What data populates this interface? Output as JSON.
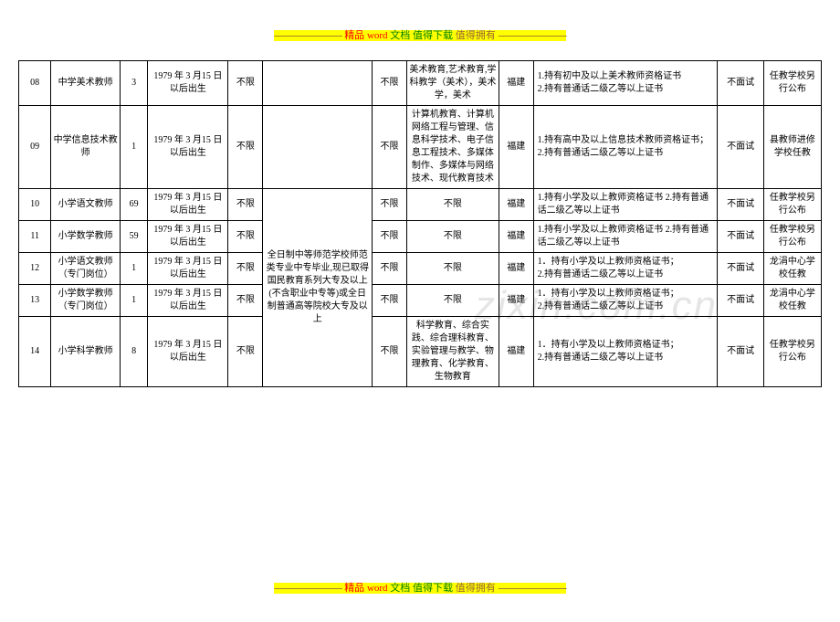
{
  "header": {
    "dashes_left": "----------------------------",
    "dashes_right": "----------------------------",
    "text_red": "精品",
    "text_word": "word",
    "text_green": "文档 值得下载",
    "text_brown": " 值得拥有"
  },
  "footer": {
    "dashes_left": "----------------------------",
    "dashes_right": "----------------------------",
    "text_red": "精品",
    "text_word": "word",
    "text_green": "文档 值得下载",
    "text_brown": " 值得拥有"
  },
  "watermark": "zixin.com.cn",
  "shared_edu_text": "全日制中等师范学校师范类专业中专毕业,现已取得国民教育系列大专及以上(不含职业中专等)或全日制普通高等院校大专及以上",
  "rows": [
    {
      "id": "08",
      "position": "中学美术教师",
      "num": "3",
      "birth": "1979 年 3 月15 日以后出生",
      "gender": "不限",
      "limit": "不限",
      "major": "美术教育,艺术教育,学科教学（美术），美术学，美术",
      "prov": "福建",
      "req": "1.持有初中及以上美术教师资格证书\n2.持有普通话二级乙等以上证书",
      "interview": "不面试",
      "location": "任教学校另行公布"
    },
    {
      "id": "09",
      "position": "中学信息技术教师",
      "num": "1",
      "birth": "1979 年 3 月15 日以后出生",
      "gender": "不限",
      "limit": "不限",
      "major": "计算机教育、计算机网络工程与管理、信息科学技术、电子信息工程技术、多媒体制作、多媒体与网络技术、现代教育技术",
      "prov": "福建",
      "req": "1.持有高中及以上信息技术教师资格证书；2.持有普通话二级乙等以上证书",
      "interview": "不面试",
      "location": "县教师进修学校任教"
    },
    {
      "id": "10",
      "position": "小学语文教师",
      "num": "69",
      "birth": "1979 年 3 月15 日以后出生",
      "gender": "不限",
      "limit": "不限",
      "major": "不限",
      "prov": "福建",
      "req": "1.持有小学及以上教师资格证书          2.持有普通话二级乙等以上证书",
      "interview": "不面试",
      "location": "任教学校另行公布"
    },
    {
      "id": "11",
      "position": "小学数学教师",
      "num": "59",
      "birth": "1979 年 3 月15 日以后出生",
      "gender": "不限",
      "limit": "不限",
      "major": "不限",
      "prov": "福建",
      "req": "1.持有小学及以上教师资格证书          2.持有普通话二级乙等以上证书",
      "interview": "不面试",
      "location": "任教学校另行公布"
    },
    {
      "id": "12",
      "position": "小学语文教师（专门岗位）",
      "num": "1",
      "birth": "1979 年 3 月15 日以后出生",
      "gender": "不限",
      "limit": "不限",
      "major": "不限",
      "prov": "福建",
      "req": "1．持有小学及以上教师资格证书；\n2.持有普通话二级乙等以上证书",
      "interview": "不面试",
      "location": "龙涓中心学校任教"
    },
    {
      "id": "13",
      "position": "小学数学教师（专门岗位）",
      "num": "1",
      "birth": "1979 年 3 月15 日以后出生",
      "gender": "不限",
      "limit": "不限",
      "major": "不限",
      "prov": "福建",
      "req": "1．持有小学及以上教师资格证书；\n2.持有普通话二级乙等以上证书",
      "interview": "不面试",
      "location": "龙涓中心学校任教"
    },
    {
      "id": "14",
      "position": "小学科学教师",
      "num": "8",
      "birth": "1979 年 3 月15 日以后出生",
      "gender": "不限",
      "limit": "不限",
      "major": "科学教育、综合实践、综合理科教育、实验管理与教学、物理教育、化学教育、生物教育",
      "prov": "福建",
      "req": "1．持有小学及以上教师资格证书；\n2.持有普通话二级乙等以上证书",
      "interview": "不面试",
      "location": "任教学校另行公布"
    }
  ]
}
